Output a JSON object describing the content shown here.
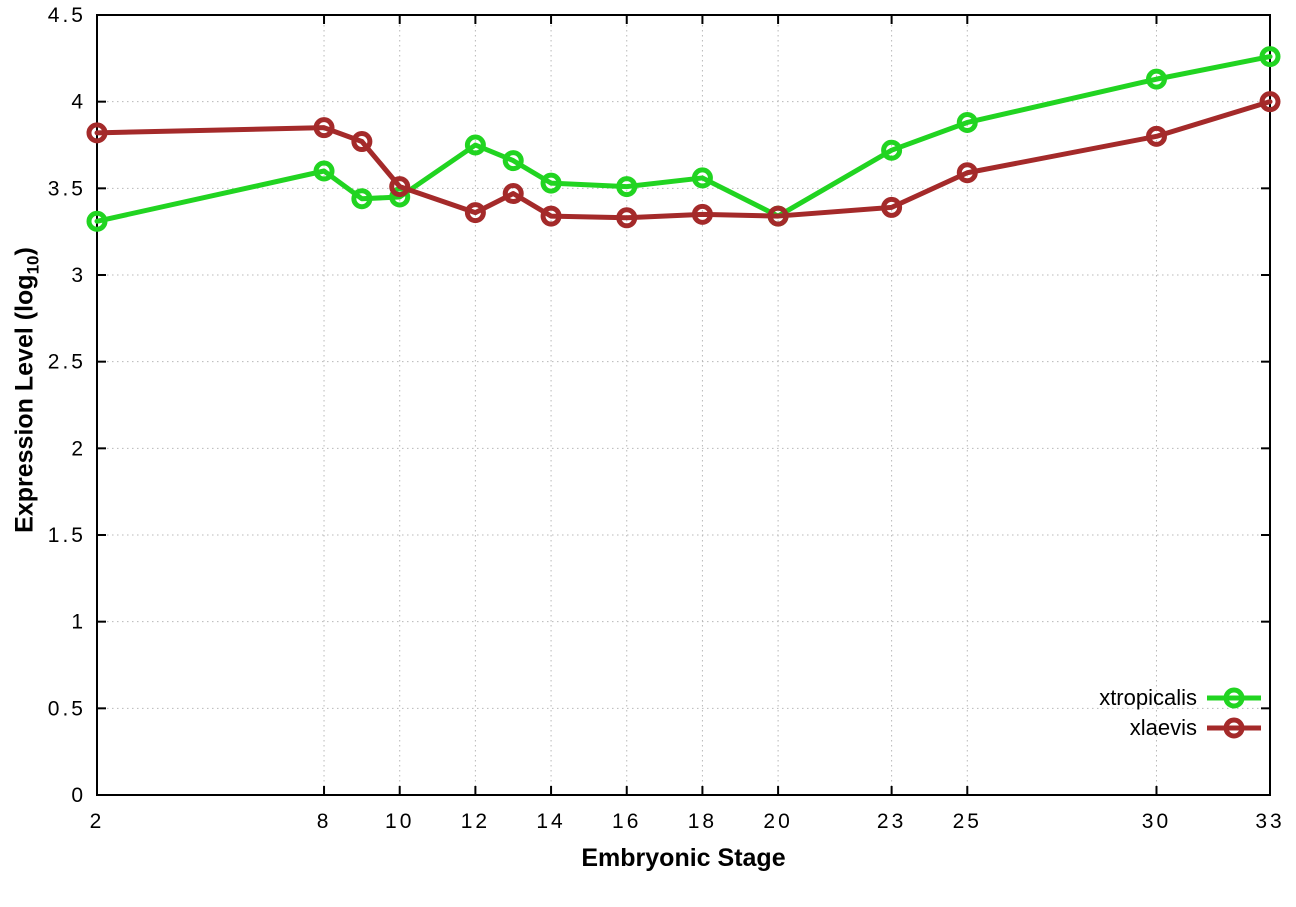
{
  "chart_data": {
    "type": "line",
    "title": "",
    "xlabel": "Embryonic Stage",
    "ylabel": "Expression Level (log10)",
    "ylabel_parts": [
      "Expression Level (log",
      "10",
      ")"
    ],
    "x": [
      2,
      8,
      9,
      10,
      12,
      13,
      14,
      16,
      18,
      20,
      23,
      25,
      30,
      33
    ],
    "series": [
      {
        "name": "xtropicalis",
        "color": "#21d421",
        "marker": "open-circle",
        "values": [
          3.31,
          3.6,
          3.44,
          3.45,
          3.75,
          3.66,
          3.53,
          3.51,
          3.56,
          3.34,
          3.72,
          3.88,
          4.13,
          4.26
        ]
      },
      {
        "name": "xlaevis",
        "color": "#a42a2a",
        "marker": "open-circle",
        "values": [
          3.82,
          3.85,
          3.77,
          3.51,
          3.36,
          3.47,
          3.34,
          3.33,
          3.35,
          3.34,
          3.39,
          3.59,
          3.8,
          4.0
        ]
      }
    ],
    "xticks": [
      2,
      8,
      10,
      12,
      14,
      16,
      18,
      20,
      23,
      25,
      30,
      33
    ],
    "yticks": [
      0,
      0.5,
      1,
      1.5,
      2,
      2.5,
      3,
      3.5,
      4,
      4.5
    ],
    "xlim": [
      2,
      33
    ],
    "ylim": [
      0,
      4.5
    ],
    "grid": true,
    "legend_position": "bottom-right"
  },
  "colors": {
    "background": "#ffffff",
    "axis": "#000000",
    "grid": "#b8b8b8",
    "text": "#000000"
  }
}
